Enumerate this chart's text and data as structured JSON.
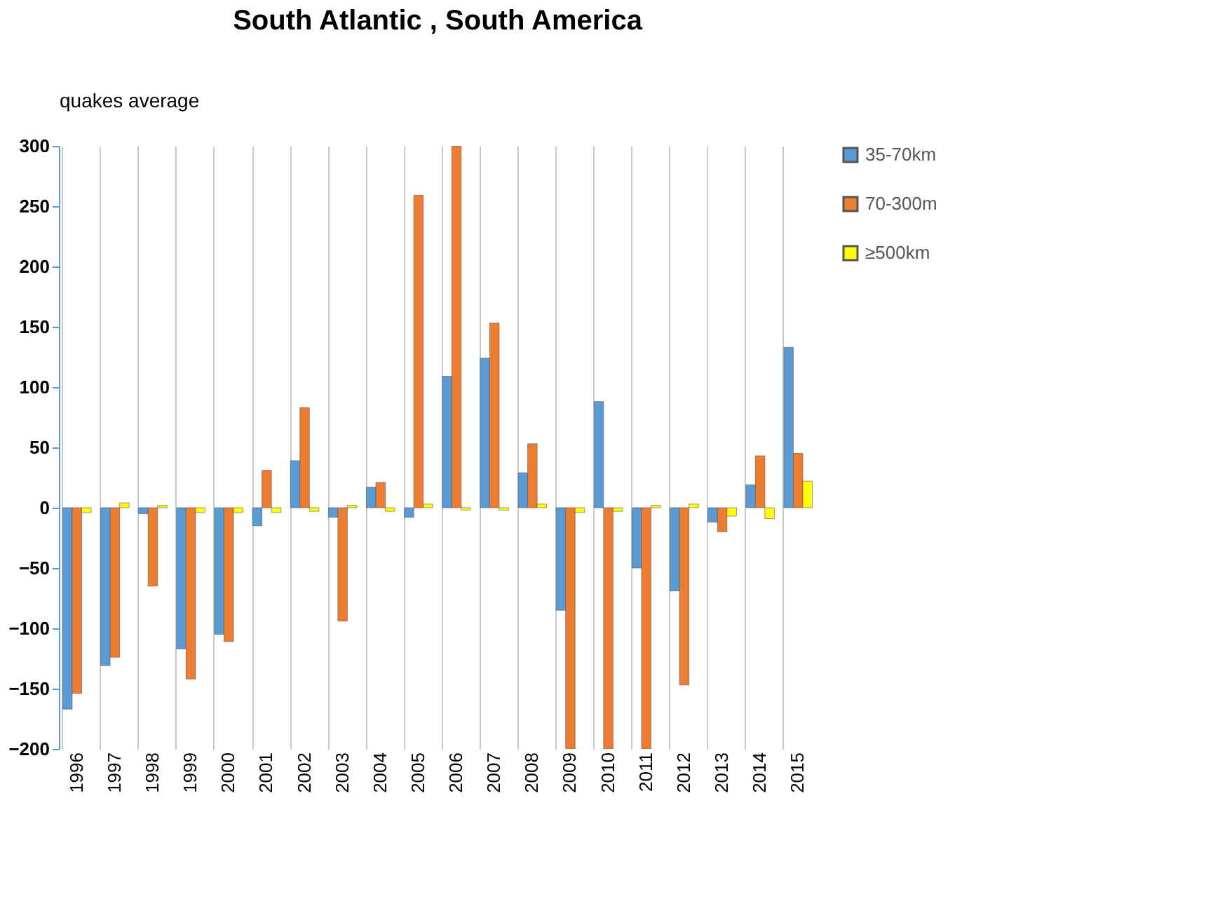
{
  "chart_data": {
    "type": "bar",
    "title": "South Atlantic , South America",
    "ylabel": "quakes average",
    "categories": [
      "1996",
      "1997",
      "1998",
      "1999",
      "2000",
      "2001",
      "2002",
      "2003",
      "2004",
      "2005",
      "2006",
      "2007",
      "2008",
      "2009",
      "2010",
      "2011",
      "2012",
      "2013",
      "2014",
      "2015"
    ],
    "series": [
      {
        "name": "35-70km",
        "color": "#5b9bd5",
        "values": [
          -167,
          -131,
          -5,
          -117,
          -105,
          -15,
          39,
          -8,
          17,
          -8,
          109,
          124,
          29,
          -85,
          88,
          -50,
          -69,
          -12,
          19,
          133
        ]
      },
      {
        "name": "70-300m",
        "color": "#ed7d31",
        "values": [
          -154,
          -124,
          -65,
          -142,
          -111,
          31,
          83,
          -94,
          21,
          259,
          300,
          153,
          53,
          -200,
          -200,
          -200,
          -147,
          -20,
          43,
          45
        ]
      },
      {
        "name": "≥500km",
        "color": "#ffff00",
        "values": [
          -4,
          4,
          2,
          -4,
          -4,
          -4,
          -3,
          2,
          -3,
          3,
          -2,
          -2,
          3,
          -4,
          -3,
          2,
          3,
          -7,
          -9,
          22
        ]
      }
    ],
    "ylim": [
      -200,
      300
    ],
    "yticks": [
      -200,
      -150,
      -100,
      -50,
      0,
      50,
      100,
      150,
      200,
      250,
      300
    ],
    "grid": "x",
    "legend": "top right"
  }
}
